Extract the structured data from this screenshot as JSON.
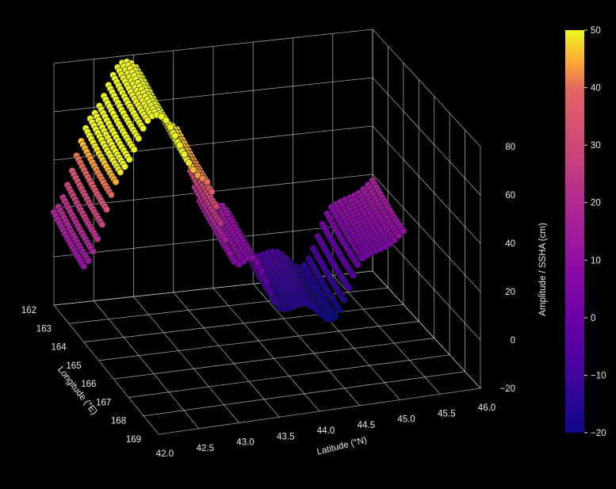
{
  "chart_data": {
    "type": "scatter",
    "projection": "3d",
    "title": "",
    "xlabel": "Longitude (°E)",
    "ylabel": "Latitude (°N)",
    "zlabel": "Amplitude / SSHA (cm)",
    "xlim": [
      162,
      169
    ],
    "ylim": [
      42.0,
      46.0
    ],
    "zlim": [
      -20,
      80
    ],
    "x_ticks": [
      "162",
      "163",
      "164",
      "165",
      "166",
      "167",
      "168",
      "169"
    ],
    "y_ticks": [
      "42.0",
      "42.5",
      "43.0",
      "43.5",
      "44.0",
      "44.5",
      "45.0",
      "45.5",
      "46.0"
    ],
    "z_ticks": [
      "-20",
      "0",
      "20",
      "40",
      "60",
      "80"
    ],
    "grid": true,
    "colormap": "plasma",
    "colorbar": {
      "label": "",
      "range": [
        -20,
        50
      ],
      "ticks": [
        "-20",
        "-10",
        "0",
        "10",
        "20",
        "30",
        "40",
        "50"
      ]
    },
    "background": "#000000",
    "surface_profile": {
      "description_latitudes": [
        42.0,
        42.5,
        43.0,
        43.5,
        44.0,
        44.5,
        45.0,
        45.5,
        46.0
      ],
      "peak_values_cm": [
        15,
        60,
        78,
        45,
        12,
        -5,
        -15,
        5,
        20
      ]
    }
  }
}
